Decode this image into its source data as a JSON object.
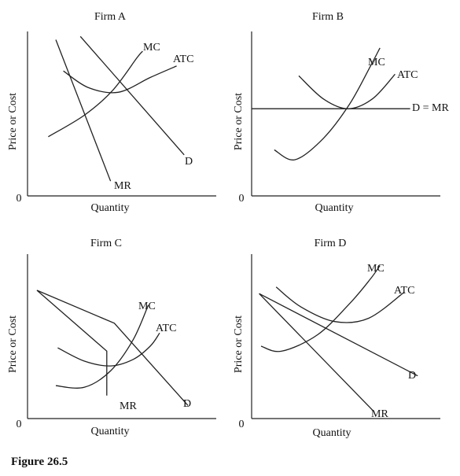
{
  "figure_caption": "Figure 26.5",
  "chart_data": [
    {
      "type": "line",
      "title": "Firm A",
      "xlabel": "Quantity",
      "ylabel": "Price or Cost",
      "origin_label": "0",
      "grid": false,
      "xlim": [
        0,
        10
      ],
      "ylim": [
        0,
        10
      ],
      "series": [
        {
          "name": "MC",
          "points": [
            [
              1.1,
              3.6
            ],
            [
              3.0,
              4.9
            ],
            [
              4.5,
              6.4
            ],
            [
              5.8,
              8.4
            ],
            [
              6.1,
              8.8
            ]
          ]
        },
        {
          "name": "ATC",
          "points": [
            [
              1.9,
              7.6
            ],
            [
              3.2,
              6.6
            ],
            [
              4.8,
              6.3
            ],
            [
              6.5,
              7.2
            ],
            [
              7.9,
              7.9
            ]
          ]
        },
        {
          "name": "D",
          "points": [
            [
              2.8,
              9.7
            ],
            [
              8.3,
              2.5
            ]
          ]
        },
        {
          "name": "MR",
          "points": [
            [
              1.5,
              9.5
            ],
            [
              4.4,
              0.9
            ]
          ]
        }
      ]
    },
    {
      "type": "line",
      "title": "Firm B",
      "xlabel": "Quantity",
      "ylabel": "Price or Cost",
      "origin_label": "0",
      "grid": false,
      "xlim": [
        0,
        10
      ],
      "ylim": [
        0,
        10
      ],
      "series": [
        {
          "name": "MC",
          "points": [
            [
              1.2,
              2.8
            ],
            [
              2.3,
              2.2
            ],
            [
              3.8,
              3.5
            ],
            [
              5.2,
              5.6
            ],
            [
              6.3,
              7.9
            ],
            [
              6.8,
              9.0
            ]
          ]
        },
        {
          "name": "ATC",
          "points": [
            [
              2.5,
              7.3
            ],
            [
              3.8,
              5.9
            ],
            [
              5.1,
              5.3
            ],
            [
              6.4,
              5.9
            ],
            [
              7.6,
              7.4
            ]
          ]
        },
        {
          "name": "D = MR",
          "points": [
            [
              0,
              5.3
            ],
            [
              8.4,
              5.3
            ]
          ]
        }
      ]
    },
    {
      "type": "line",
      "title": "Firm C",
      "xlabel": "Quantity",
      "ylabel": "Price or Cost",
      "origin_label": "0",
      "grid": false,
      "xlim": [
        0,
        10
      ],
      "ylim": [
        0,
        10
      ],
      "series": [
        {
          "name": "MC",
          "points": [
            [
              1.5,
              2.0
            ],
            [
              3.0,
              1.9
            ],
            [
              4.4,
              2.9
            ],
            [
              5.6,
              4.8
            ],
            [
              6.4,
              6.9
            ]
          ]
        },
        {
          "name": "ATC",
          "points": [
            [
              1.6,
              4.3
            ],
            [
              3.0,
              3.5
            ],
            [
              4.4,
              3.2
            ],
            [
              5.6,
              3.6
            ],
            [
              6.5,
              4.4
            ],
            [
              7.0,
              5.2
            ]
          ]
        },
        {
          "name": "D",
          "points": [
            [
              0.5,
              7.8
            ],
            [
              4.6,
              5.8
            ],
            [
              8.5,
              0.8
            ]
          ]
        },
        {
          "name": "MR",
          "points": [
            [
              0.5,
              7.8
            ],
            [
              4.2,
              4.1
            ],
            [
              4.2,
              1.4
            ]
          ]
        }
      ]
    },
    {
      "type": "line",
      "title": "Firm D",
      "xlabel": "Quantity",
      "ylabel": "Price or Cost",
      "origin_label": "0",
      "grid": false,
      "xlim": [
        0,
        10
      ],
      "ylim": [
        0,
        10
      ],
      "series": [
        {
          "name": "MC",
          "points": [
            [
              0.5,
              4.4
            ],
            [
              1.6,
              4.1
            ],
            [
              3.5,
              5.1
            ],
            [
              5.2,
              7.0
            ],
            [
              6.3,
              8.5
            ],
            [
              6.8,
              9.3
            ]
          ]
        },
        {
          "name": "ATC",
          "points": [
            [
              1.3,
              8.0
            ],
            [
              2.6,
              6.8
            ],
            [
              4.4,
              5.9
            ],
            [
              6.2,
              6.1
            ],
            [
              8.1,
              7.7
            ]
          ]
        },
        {
          "name": "D",
          "points": [
            [
              0.4,
              7.6
            ],
            [
              8.8,
              2.6
            ]
          ]
        },
        {
          "name": "MR",
          "points": [
            [
              0.4,
              7.6
            ],
            [
              6.5,
              0.4
            ]
          ]
        }
      ]
    }
  ]
}
